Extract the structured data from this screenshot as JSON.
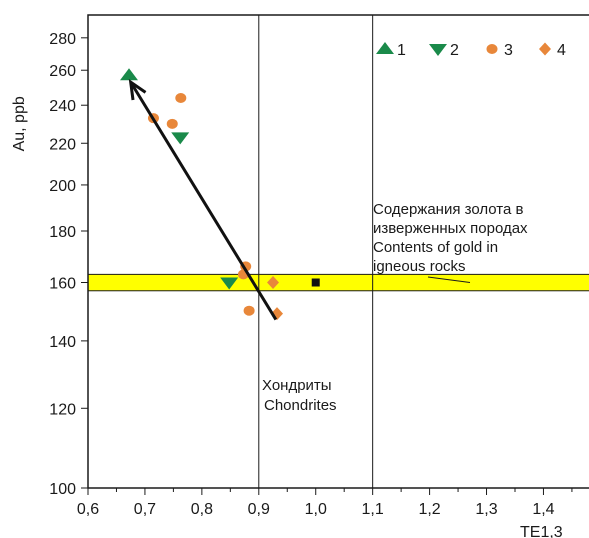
{
  "chart_data": {
    "type": "scatter",
    "title": "",
    "xlabel": "TE1,3",
    "ylabel": "Au, ppb",
    "xlim": [
      0.6,
      1.48
    ],
    "ylim": [
      100,
      295
    ],
    "y_scale": "log",
    "grid": false,
    "x_ticks": [
      "0,6",
      "0,7",
      "0,8",
      "0,9",
      "1,0",
      "1,1",
      "1,2",
      "1,3",
      "1,4"
    ],
    "x_tick_values": [
      0.6,
      0.7,
      0.8,
      0.9,
      1.0,
      1.1,
      1.2,
      1.3,
      1.4
    ],
    "y_ticks": [
      "100",
      "120",
      "140",
      "160",
      "180",
      "200",
      "220",
      "240",
      "260",
      "280"
    ],
    "y_tick_values": [
      100,
      120,
      140,
      160,
      180,
      200,
      220,
      240,
      260,
      280
    ],
    "vertical_reference_lines": [
      0.9,
      1.1
    ],
    "band": {
      "y_from": 157,
      "y_to": 163,
      "color": "#ffff00",
      "label": "Содержания золота в изверженных породах Contents of gold in igneous rocks",
      "label_lines": [
        "Содержания золота в",
        "изверженных породах",
        "Contents of gold in",
        "igneous rocks"
      ]
    },
    "chondrite_point": {
      "x": 1.0,
      "y": 160,
      "label_lines": [
        "Хондриты",
        "Chondrites"
      ]
    },
    "trend_arrow": {
      "from": [
        0.93,
        147
      ],
      "to": [
        0.675,
        253
      ]
    },
    "legend_position": "top-right",
    "series": [
      {
        "name": "1",
        "marker": "triangle-up",
        "color": "#1a8a4a",
        "points": [
          {
            "x": 0.672,
            "y": 257
          }
        ]
      },
      {
        "name": "2",
        "marker": "triangle-down",
        "color": "#1a8a4a",
        "points": [
          {
            "x": 0.762,
            "y": 223
          },
          {
            "x": 0.848,
            "y": 160
          }
        ]
      },
      {
        "name": "3",
        "marker": "circle",
        "color": "#e8873a",
        "points": [
          {
            "x": 0.715,
            "y": 233
          },
          {
            "x": 0.748,
            "y": 230
          },
          {
            "x": 0.763,
            "y": 244
          },
          {
            "x": 0.873,
            "y": 163
          },
          {
            "x": 0.877,
            "y": 166
          },
          {
            "x": 0.883,
            "y": 150
          }
        ]
      },
      {
        "name": "4",
        "marker": "diamond",
        "color": "#e8873a",
        "points": [
          {
            "x": 0.925,
            "y": 160
          },
          {
            "x": 0.932,
            "y": 149
          }
        ]
      }
    ]
  }
}
